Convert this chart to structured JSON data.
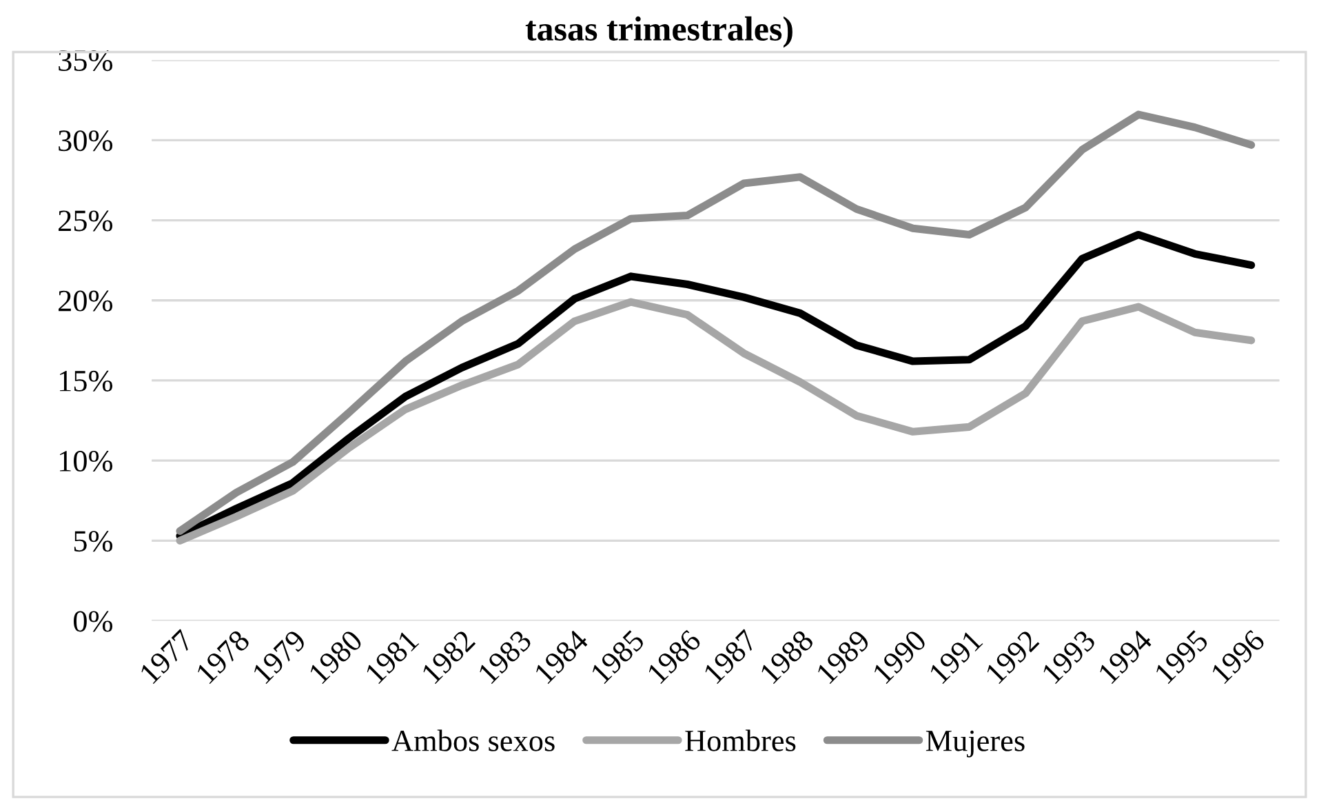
{
  "chart_data": {
    "type": "line",
    "title": "tasas trimestrales)",
    "categories": [
      "1977",
      "1978",
      "1979",
      "1980",
      "1981",
      "1982",
      "1983",
      "1984",
      "1985",
      "1986",
      "1987",
      "1988",
      "1989",
      "1990",
      "1991",
      "1992",
      "1993",
      "1994",
      "1995",
      "1996"
    ],
    "series": [
      {
        "name": "Ambos sexos",
        "color": "#000000",
        "values": [
          5.3,
          7.0,
          8.6,
          11.4,
          14.0,
          15.8,
          17.3,
          20.1,
          21.5,
          21.0,
          20.2,
          19.2,
          17.2,
          16.2,
          16.3,
          18.4,
          22.6,
          24.1,
          22.9,
          22.2
        ]
      },
      {
        "name": "Hombres",
        "color": "#a6a6a6",
        "values": [
          5.0,
          6.5,
          8.1,
          10.8,
          13.2,
          14.7,
          16.0,
          18.7,
          19.9,
          19.1,
          16.7,
          14.9,
          12.8,
          11.8,
          12.1,
          14.2,
          18.7,
          19.6,
          18.0,
          17.5
        ]
      },
      {
        "name": "Mujeres",
        "color": "#8c8c8c",
        "values": [
          5.6,
          8.0,
          9.9,
          13.0,
          16.2,
          18.7,
          20.6,
          23.2,
          25.1,
          25.3,
          27.3,
          27.7,
          25.7,
          24.5,
          24.1,
          25.8,
          29.4,
          31.6,
          30.8,
          29.7
        ]
      }
    ],
    "ylim": [
      0,
      35
    ],
    "yticks": [
      {
        "value": 0,
        "label": "0%"
      },
      {
        "value": 5,
        "label": "5%"
      },
      {
        "value": 10,
        "label": "10%"
      },
      {
        "value": 15,
        "label": "15%"
      },
      {
        "value": 20,
        "label": "20%"
      },
      {
        "value": 25,
        "label": "25%"
      },
      {
        "value": 30,
        "label": "30%"
      },
      {
        "value": 35,
        "label": "35%"
      }
    ],
    "grid": "y",
    "legend": "bottom",
    "line_style": "solid",
    "marker": "none"
  }
}
